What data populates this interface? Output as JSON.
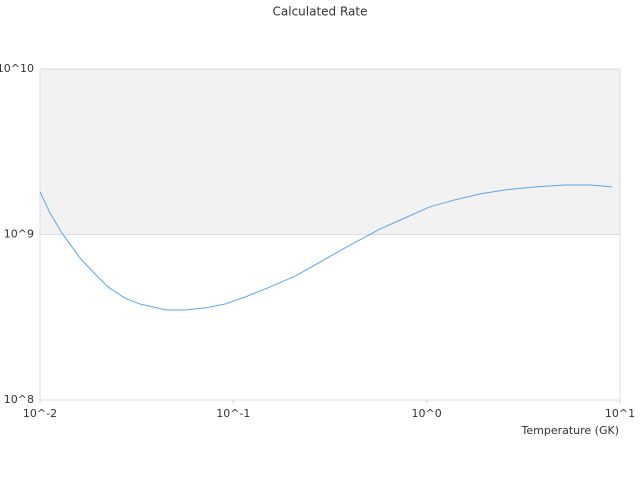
{
  "chart_data": {
    "type": "line",
    "title": "Calculated Rate",
    "x_label": "Temperature (GK)",
    "x": [
      0.01,
      0.01126,
      0.013,
      0.0161,
      0.0186,
      0.0225,
      0.0275,
      0.0329,
      0.0449,
      0.0562,
      0.0714,
      0.0906,
      0.115,
      0.155,
      0.209,
      0.281,
      0.402,
      0.574,
      0.773,
      1.04,
      1.4,
      1.89,
      2.55,
      3.64,
      5.2,
      7.0,
      9.1
    ],
    "series": [
      {
        "color": "#5aa6ee",
        "values": [
          1810000000,
          1350000000,
          1020000000,
          721000000,
          602000000,
          482000000,
          413000000,
          380000000,
          350000000,
          350000000,
          360000000,
          380000000,
          419000000,
          482000000,
          561000000,
          682000000,
          864000000,
          1080000000,
          1260000000,
          1470000000,
          1620000000,
          1760000000,
          1860000000,
          1940000000,
          1990000000,
          1990000000,
          1940000000
        ]
      }
    ],
    "xscale": "log",
    "yscale": "log",
    "xlim": [
      0.01,
      10
    ],
    "ylim": [
      100000000,
      10000000000
    ],
    "xticks": [
      {
        "value": 0.01,
        "label": "10^-2"
      },
      {
        "value": 0.1,
        "label": "10^-1"
      },
      {
        "value": 1,
        "label": "10^0"
      },
      {
        "value": 10,
        "label": "10^1"
      }
    ],
    "yticks": [
      {
        "value": 100000000,
        "label": "10^8"
      },
      {
        "value": 1000000000,
        "label": "10^9"
      },
      {
        "value": 10000000000,
        "label": "10^10"
      }
    ],
    "band_shading": true
  }
}
